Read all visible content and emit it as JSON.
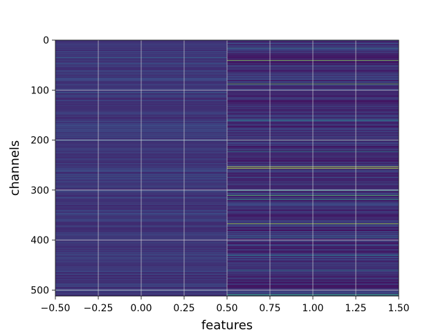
{
  "chart_data": {
    "type": "heatmap",
    "title": "",
    "xlabel": "features",
    "ylabel": "channels",
    "xlim": [
      -0.5,
      1.5
    ],
    "ylim": [
      512,
      0
    ],
    "x_ticks": [
      -0.5,
      -0.25,
      0.0,
      0.25,
      0.5,
      0.75,
      1.0,
      1.25,
      1.5
    ],
    "x_tick_labels": [
      "−0.50",
      "−0.25",
      "0.00",
      "0.25",
      "0.50",
      "0.75",
      "1.00",
      "1.25",
      "1.50"
    ],
    "y_ticks": [
      0,
      100,
      200,
      300,
      400,
      500
    ],
    "y_tick_labels": [
      "0",
      "100",
      "200",
      "300",
      "400",
      "500"
    ],
    "grid": true,
    "colormap": "viridis",
    "columns": [
      0,
      1
    ],
    "rows": 512,
    "highlights": [
      {
        "column": 0,
        "channel": 35,
        "value": 0.32
      },
      {
        "column": 0,
        "channel": 47,
        "value": 0.28
      },
      {
        "column": 0,
        "channel": 105,
        "value": 0.3
      },
      {
        "column": 0,
        "channel": 170,
        "value": 0.26
      },
      {
        "column": 0,
        "channel": 200,
        "value": 0.29
      },
      {
        "column": 0,
        "channel": 262,
        "value": 0.27
      },
      {
        "column": 0,
        "channel": 272,
        "value": 0.33
      },
      {
        "column": 0,
        "channel": 360,
        "value": 0.25
      },
      {
        "column": 0,
        "channel": 462,
        "value": 0.24
      },
      {
        "column": 1,
        "channel": 15,
        "value": 0.42
      },
      {
        "column": 1,
        "channel": 40,
        "value": 0.82
      },
      {
        "column": 1,
        "channel": 87,
        "value": 0.75
      },
      {
        "column": 1,
        "channel": 160,
        "value": 0.5
      },
      {
        "column": 1,
        "channel": 200,
        "value": 0.45
      },
      {
        "column": 1,
        "channel": 222,
        "value": 0.48
      },
      {
        "column": 1,
        "channel": 253,
        "value": 0.97
      },
      {
        "column": 1,
        "channel": 256,
        "value": 0.9
      },
      {
        "column": 1,
        "channel": 300,
        "value": 0.6
      },
      {
        "column": 1,
        "channel": 310,
        "value": 0.7
      },
      {
        "column": 1,
        "channel": 318,
        "value": 0.55
      },
      {
        "column": 1,
        "channel": 367,
        "value": 0.85
      },
      {
        "column": 1,
        "channel": 394,
        "value": 0.4
      },
      {
        "column": 1,
        "channel": 430,
        "value": 0.45
      },
      {
        "column": 1,
        "channel": 460,
        "value": 0.42
      },
      {
        "column": 1,
        "channel": 508,
        "value": 0.55
      },
      {
        "column": 1,
        "channel": 510,
        "value": 0.58
      }
    ],
    "colors": {
      "low": "#440154",
      "base": "#3b2f7e",
      "mid": "#21918c",
      "high": "#fde725",
      "grid": "#d9d9d9"
    }
  }
}
